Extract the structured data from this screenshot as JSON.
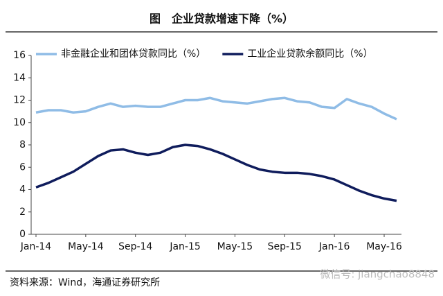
{
  "chart_data": {
    "type": "line",
    "title": "图　企业贷款增速下降（%）",
    "source": "资料来源：Wind，海通证券研究所",
    "watermark": "微信号: jiangchao8848",
    "categories": [
      "Jan-14",
      null,
      null,
      null,
      "May-14",
      null,
      null,
      null,
      "Sep-14",
      null,
      null,
      null,
      "Jan-15",
      null,
      null,
      null,
      "May-15",
      null,
      null,
      null,
      "Sep-15",
      null,
      null,
      null,
      "Jan-16",
      null,
      null,
      null,
      "May-16",
      null
    ],
    "series": [
      {
        "name": "非金融企业和团体贷款同比（%）",
        "color": "#8fbce6",
        "values": [
          10.9,
          11.1,
          11.1,
          10.9,
          11.0,
          11.4,
          11.7,
          11.4,
          11.5,
          11.4,
          11.4,
          11.7,
          12.0,
          12.0,
          12.2,
          11.9,
          11.8,
          11.7,
          11.9,
          12.1,
          12.2,
          11.9,
          11.8,
          11.4,
          11.3,
          12.1,
          11.7,
          11.4,
          10.8,
          10.3
        ]
      },
      {
        "name": "工业企业贷款余额同比（%）",
        "color": "#0f1c5c",
        "values": [
          4.2,
          4.6,
          5.1,
          5.6,
          6.3,
          7.0,
          7.5,
          7.6,
          7.3,
          7.1,
          7.3,
          7.8,
          8.0,
          7.9,
          7.6,
          7.2,
          6.7,
          6.2,
          5.8,
          5.6,
          5.5,
          5.5,
          5.4,
          5.2,
          4.9,
          4.4,
          3.9,
          3.5,
          3.2,
          3.0
        ]
      }
    ],
    "ylim": [
      0,
      16
    ],
    "yticks": [
      0,
      2,
      4,
      6,
      8,
      10,
      12,
      14,
      16
    ],
    "grid": false,
    "legend": "top-left"
  }
}
